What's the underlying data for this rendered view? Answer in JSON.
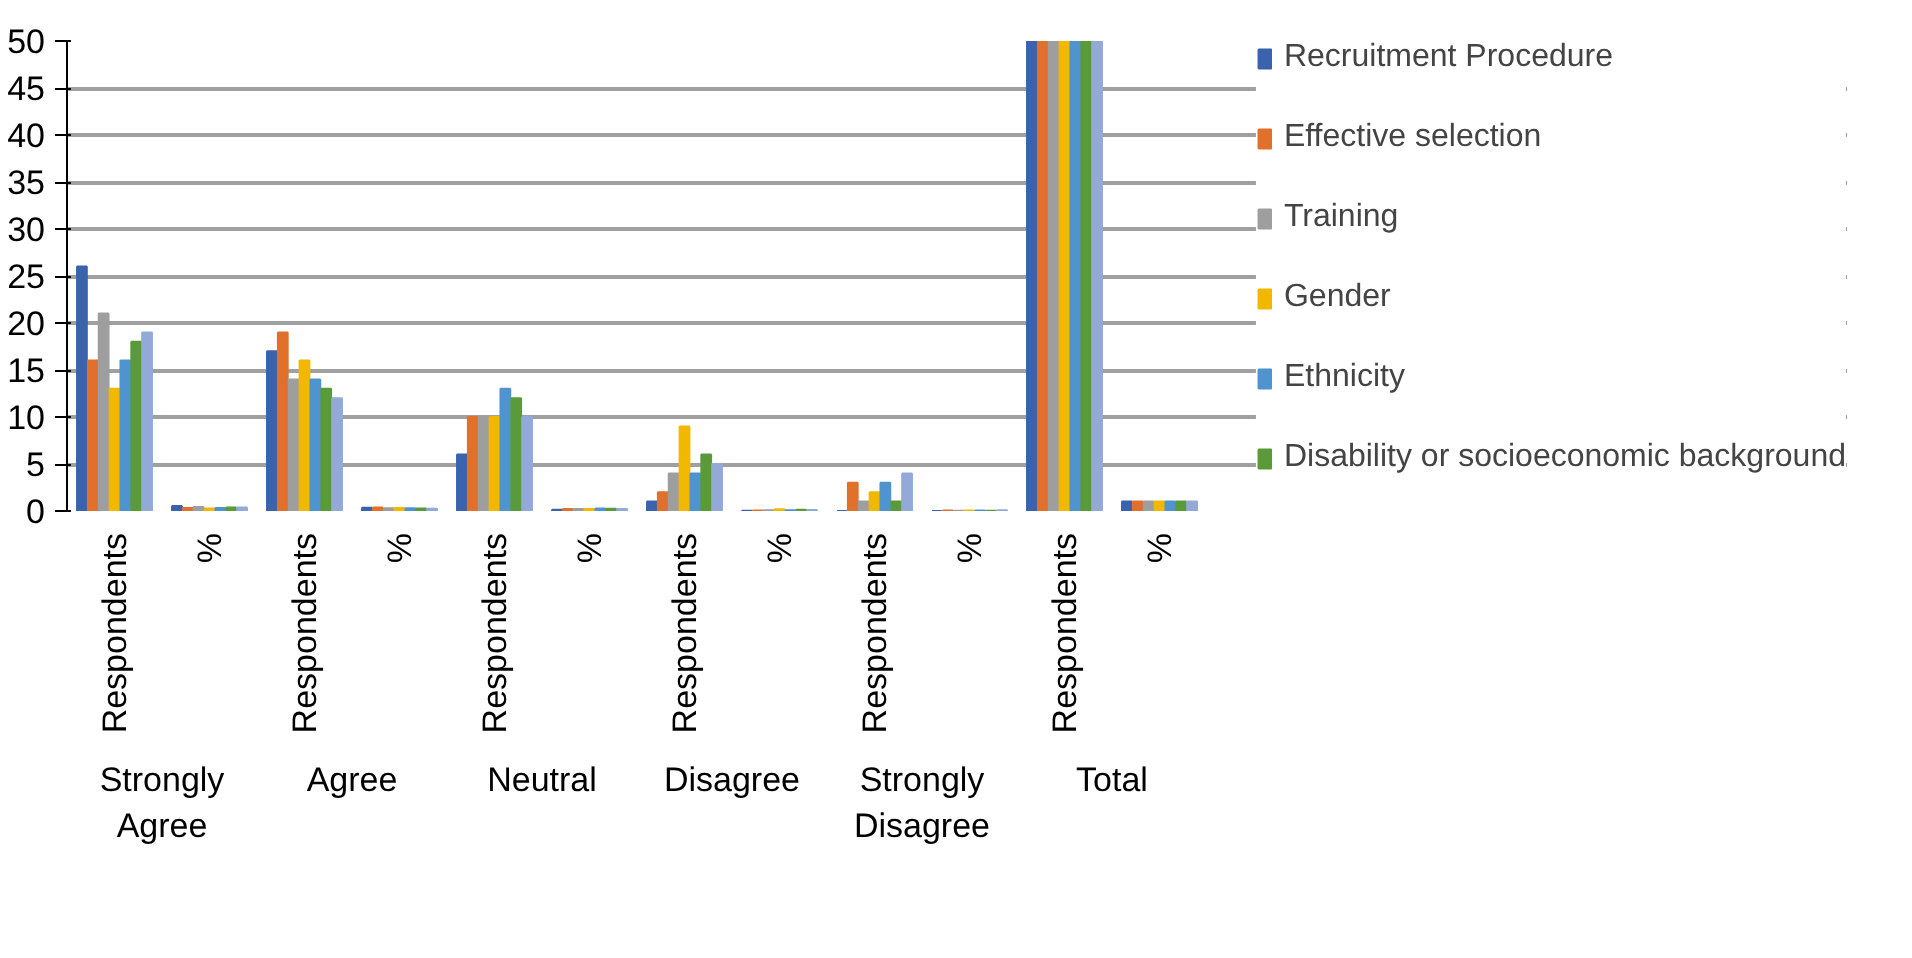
{
  "chart_data": {
    "type": "bar",
    "categories": [
      "Respondents",
      "%",
      "Respondents",
      "%",
      "Respondents",
      "%",
      "Respondents",
      "%",
      "Respondents",
      "%",
      "Respondents",
      "%"
    ],
    "annotations": [
      "Strongly Agree",
      "Agree",
      "Neutral",
      "Disagree",
      "Strongly Disagree",
      "Total"
    ],
    "series": [
      {
        "name": "Recruitment Procedure",
        "color": "#3a62ad",
        "values": [
          26,
          0.52,
          17,
          0.34,
          6,
          0.12,
          1,
          0.02,
          0,
          0,
          50,
          1
        ]
      },
      {
        "name": "Effective selection",
        "color": "#e0702b",
        "values": [
          16,
          0.32,
          19,
          0.38,
          10,
          0.2,
          2,
          0.04,
          3,
          0.06,
          50,
          1
        ]
      },
      {
        "name": "Training",
        "color": "#9e9e9e",
        "values": [
          21,
          0.42,
          14,
          0.28,
          10,
          0.2,
          4,
          0.08,
          1,
          0.02,
          50,
          1
        ]
      },
      {
        "name": "Gender",
        "color": "#f2b800",
        "values": [
          13,
          0.26,
          16,
          0.32,
          10,
          0.2,
          9,
          0.18,
          2,
          0.04,
          50,
          1
        ]
      },
      {
        "name": "Ethnicity",
        "color": "#4f94cf",
        "values": [
          16,
          0.32,
          14,
          0.28,
          13,
          0.26,
          4,
          0.08,
          3,
          0.06,
          50,
          1
        ]
      },
      {
        "name": "Disability or socioeconomic background",
        "color": "#5a9a3a",
        "values": [
          18,
          0.36,
          13,
          0.26,
          12,
          0.24,
          6,
          0.12,
          1,
          0.02,
          50,
          1
        ]
      },
      {
        "color": "#93a9d8",
        "values": [
          19,
          0.38,
          12,
          0.24,
          10,
          0.2,
          5,
          0.1,
          4,
          0.08,
          50,
          1
        ]
      }
    ],
    "ylim": [
      0,
      50
    ],
    "yticks": [
      0,
      5,
      10,
      15,
      20,
      25,
      30,
      35,
      40,
      45,
      50
    ],
    "grid": "y",
    "legend": "right"
  }
}
